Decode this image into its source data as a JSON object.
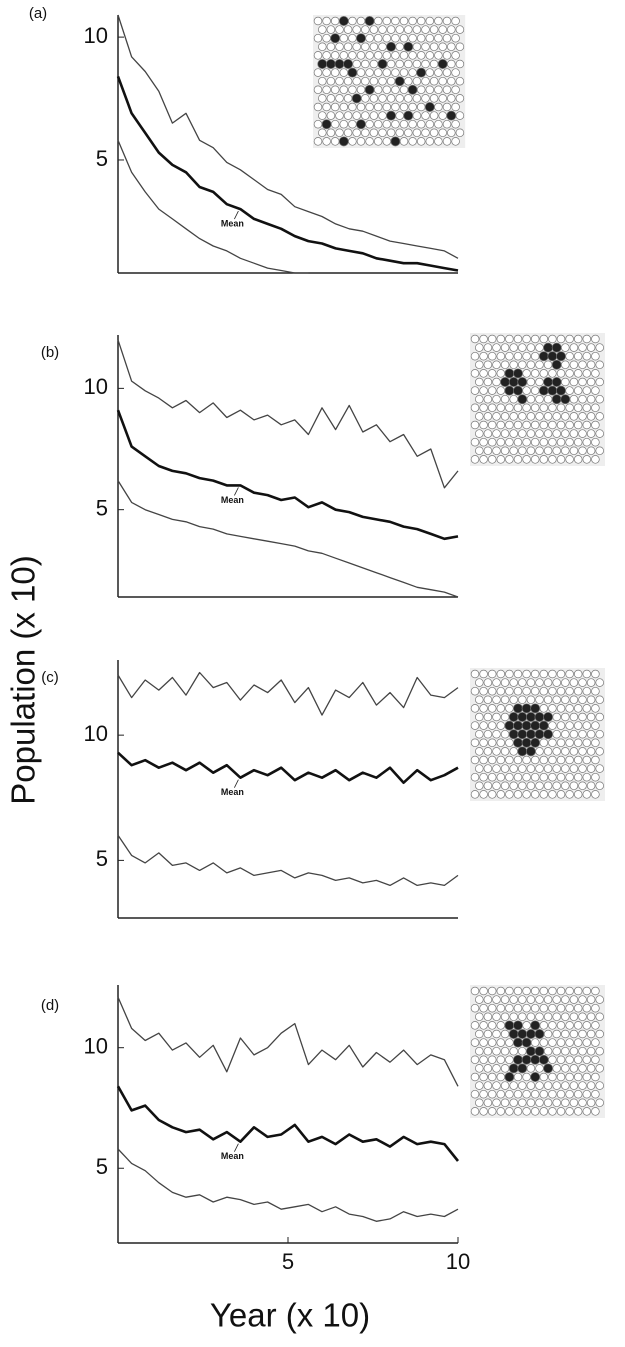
{
  "y_label": "Population (x 10)",
  "x_label": "Year (x 10)",
  "chart_data": [
    {
      "type": "line",
      "label": "(a)",
      "x": [
        0,
        0.4,
        0.8,
        1.2,
        1.6,
        2,
        2.4,
        2.8,
        3.2,
        3.6,
        4,
        4.4,
        4.8,
        5.2,
        5.6,
        6,
        6.4,
        6.8,
        7.2,
        7.6,
        8,
        8.4,
        8.8,
        9.2,
        9.6,
        10
      ],
      "xlim": [
        0,
        10
      ],
      "ylim": [
        0.4,
        10.9
      ],
      "yticks": [
        5,
        10
      ],
      "series": [
        {
          "color": "#444",
          "values": [
            10.9,
            9.2,
            8.6,
            7.8,
            6.5,
            6.9,
            5.8,
            5.5,
            4.9,
            4.6,
            4.2,
            3.8,
            3.6,
            3.1,
            2.9,
            2.7,
            2.4,
            2.2,
            2.1,
            1.9,
            1.7,
            1.6,
            1.5,
            1.4,
            1.3,
            1.0
          ]
        },
        {
          "name": "Mean",
          "color": "#111",
          "values": [
            8.4,
            6.9,
            6.1,
            5.3,
            4.8,
            4.5,
            3.9,
            3.7,
            3.2,
            3.0,
            2.6,
            2.4,
            2.2,
            1.9,
            1.7,
            1.6,
            1.4,
            1.3,
            1.2,
            1.0,
            0.9,
            0.8,
            0.8,
            0.7,
            0.6,
            0.5
          ]
        },
        {
          "color": "#444",
          "values": [
            5.8,
            4.5,
            3.7,
            3.0,
            2.6,
            2.2,
            1.8,
            1.5,
            1.3,
            1.0,
            0.8,
            0.6,
            0.5,
            0.4,
            0.4,
            null,
            null,
            null,
            null,
            null,
            null,
            null,
            null,
            null,
            null,
            null
          ]
        }
      ]
    },
    {
      "type": "line",
      "label": "(b)",
      "x": [
        0,
        0.4,
        0.8,
        1.2,
        1.6,
        2,
        2.4,
        2.8,
        3.2,
        3.6,
        4,
        4.4,
        4.8,
        5.2,
        5.6,
        6,
        6.4,
        6.8,
        7.2,
        7.6,
        8,
        8.4,
        8.8,
        9.2,
        9.6,
        10
      ],
      "xlim": [
        0,
        10
      ],
      "ylim": [
        1.4,
        12.2
      ],
      "yticks": [
        5,
        10
      ],
      "series": [
        {
          "color": "#444",
          "values": [
            12.0,
            10.3,
            9.9,
            9.6,
            9.2,
            9.5,
            9.0,
            9.4,
            8.8,
            9.1,
            8.7,
            8.9,
            8.5,
            8.7,
            8.1,
            9.2,
            8.3,
            9.3,
            8.2,
            8.5,
            7.8,
            8.1,
            7.2,
            7.5,
            5.9,
            6.6
          ]
        },
        {
          "name": "Mean",
          "color": "#111",
          "values": [
            9.1,
            7.6,
            7.2,
            6.8,
            6.6,
            6.5,
            6.3,
            6.2,
            6.0,
            6.0,
            5.7,
            5.6,
            5.4,
            5.5,
            5.1,
            5.3,
            5.0,
            4.9,
            4.7,
            4.6,
            4.5,
            4.3,
            4.2,
            4.0,
            3.8,
            3.9
          ]
        },
        {
          "color": "#444",
          "values": [
            6.2,
            5.3,
            5.0,
            4.8,
            4.6,
            4.5,
            4.3,
            4.2,
            4.0,
            3.9,
            3.8,
            3.7,
            3.6,
            3.5,
            3.3,
            3.2,
            3.0,
            2.8,
            2.6,
            2.4,
            2.2,
            2.0,
            1.8,
            1.7,
            1.6,
            1.4
          ]
        }
      ]
    },
    {
      "type": "line",
      "label": "(c)",
      "x": [
        0,
        0.4,
        0.8,
        1.2,
        1.6,
        2,
        2.4,
        2.8,
        3.2,
        3.6,
        4,
        4.4,
        4.8,
        5.2,
        5.6,
        6,
        6.4,
        6.8,
        7.2,
        7.6,
        8,
        8.4,
        8.8,
        9.2,
        9.6,
        10
      ],
      "xlim": [
        0,
        10
      ],
      "ylim": [
        2.7,
        13
      ],
      "yticks": [
        5,
        10
      ],
      "series": [
        {
          "color": "#444",
          "values": [
            12.4,
            11.5,
            12.2,
            11.8,
            12.3,
            11.6,
            12.5,
            11.9,
            12.1,
            11.4,
            12.0,
            11.7,
            12.2,
            11.3,
            11.9,
            10.8,
            11.8,
            11.5,
            12.1,
            11.2,
            11.7,
            11.1,
            12.3,
            11.6,
            11.5,
            11.9
          ]
        },
        {
          "name": "Mean",
          "color": "#111",
          "values": [
            9.3,
            8.8,
            9.0,
            8.7,
            8.9,
            8.6,
            8.9,
            8.5,
            8.8,
            8.3,
            8.6,
            8.4,
            8.7,
            8.2,
            8.5,
            8.3,
            8.6,
            8.2,
            8.5,
            8.3,
            8.7,
            8.1,
            8.6,
            8.2,
            8.4,
            8.7
          ]
        },
        {
          "color": "#444",
          "values": [
            6.0,
            5.2,
            4.9,
            5.3,
            4.8,
            4.9,
            4.6,
            4.9,
            4.5,
            4.7,
            4.4,
            4.5,
            4.6,
            4.3,
            4.5,
            4.4,
            4.2,
            4.3,
            4.1,
            4.2,
            4.0,
            4.3,
            4.0,
            4.1,
            4.0,
            4.4
          ]
        }
      ]
    },
    {
      "type": "line",
      "label": "(d)",
      "x": [
        0,
        0.4,
        0.8,
        1.2,
        1.6,
        2,
        2.4,
        2.8,
        3.2,
        3.6,
        4,
        4.4,
        4.8,
        5.2,
        5.6,
        6,
        6.4,
        6.8,
        7.2,
        7.6,
        8,
        8.4,
        8.8,
        9.2,
        9.6,
        10
      ],
      "xlim": [
        0,
        10
      ],
      "ylim": [
        1.9,
        12.6
      ],
      "yticks": [
        5,
        10
      ],
      "xticks": [
        5,
        10
      ],
      "series": [
        {
          "color": "#444",
          "values": [
            12.1,
            10.8,
            10.3,
            10.6,
            9.9,
            10.2,
            9.6,
            10.1,
            9.0,
            10.4,
            9.7,
            10.0,
            10.6,
            11.0,
            9.3,
            9.9,
            9.5,
            10.1,
            9.2,
            9.8,
            9.4,
            9.9,
            9.3,
            9.7,
            9.5,
            8.4
          ]
        },
        {
          "name": "Mean",
          "color": "#111",
          "values": [
            8.4,
            7.4,
            7.6,
            7.0,
            6.7,
            6.5,
            6.6,
            6.2,
            6.5,
            6.1,
            6.7,
            6.3,
            6.4,
            6.8,
            6.1,
            6.3,
            6.0,
            6.4,
            6.1,
            6.2,
            5.9,
            6.3,
            6.0,
            6.1,
            6.0,
            5.3
          ]
        },
        {
          "color": "#444",
          "values": [
            5.8,
            5.2,
            4.9,
            4.4,
            4.0,
            3.8,
            3.9,
            3.6,
            3.8,
            3.7,
            3.5,
            3.6,
            3.3,
            3.4,
            3.5,
            3.2,
            3.4,
            3.1,
            3.0,
            2.8,
            2.9,
            3.2,
            3.0,
            3.1,
            3.0,
            3.3
          ]
        }
      ]
    }
  ]
}
